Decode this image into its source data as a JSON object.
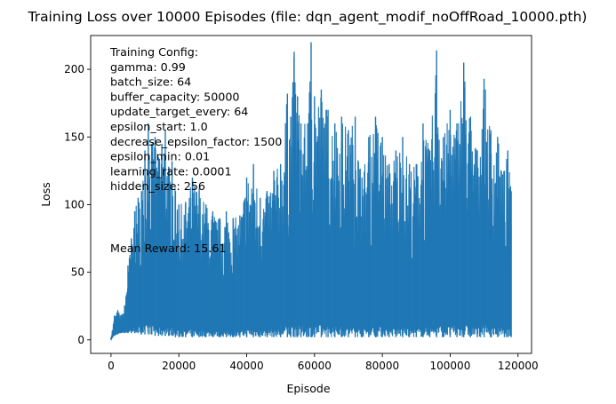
{
  "chart_data": {
    "type": "line",
    "title": "Training Loss over 10000 Episodes (file: dqn_agent_modif_noOffRoad_10000.pth)",
    "xlabel": "Episode",
    "ylabel": "Loss",
    "xlim": [
      -6000,
      124000
    ],
    "ylim": [
      -10,
      225
    ],
    "xticks": [
      0,
      20000,
      40000,
      60000,
      80000,
      100000,
      120000
    ],
    "xtick_labels": [
      "0",
      "20000",
      "40000",
      "60000",
      "80000",
      "100000",
      "120000"
    ],
    "yticks": [
      0,
      50,
      100,
      150,
      200
    ],
    "ytick_labels": [
      "0",
      "50",
      "100",
      "150",
      "200"
    ],
    "grid": false,
    "series_color": "#1f77b4",
    "annotations": {
      "config_lines": [
        "Training Config:",
        "gamma: 0.99",
        "batch_size: 64",
        "buffer_capacity: 50000",
        "update_target_every: 64",
        "epsilon_start: 1.0",
        "decrease_epsilon_factor: 1500",
        "epsilon_min: 0.01",
        "learning_rate: 0.0001",
        "hidden_size: 256"
      ],
      "mean_reward": "Mean Reward: 15.61"
    },
    "series": [
      {
        "description_free": true,
        "x": [
          0,
          1000,
          2000,
          3000,
          4000,
          5000,
          6000,
          7000,
          8000,
          9000,
          10000,
          11000,
          12000,
          13000,
          14000,
          15000,
          16000,
          17000,
          18000,
          19000,
          20000,
          22000,
          24000,
          26000,
          28000,
          30000,
          32000,
          34000,
          36000,
          38000,
          40000,
          42000,
          44000,
          46000,
          48000,
          50000,
          52000,
          53000,
          54000,
          55000,
          56000,
          58000,
          59000,
          60000,
          62000,
          64000,
          66000,
          68000,
          70000,
          72000,
          74000,
          76000,
          78000,
          80000,
          82000,
          84000,
          86000,
          88000,
          90000,
          92000,
          94000,
          96000,
          98000,
          100000,
          102000,
          104000,
          106000,
          108000,
          110000,
          112000,
          114000,
          116000,
          117000,
          118000
        ],
        "max": [
          2,
          18,
          22,
          18,
          25,
          55,
          75,
          95,
          105,
          110,
          140,
          160,
          145,
          150,
          135,
          145,
          155,
          128,
          132,
          110,
          100,
          102,
          120,
          112,
          100,
          95,
          90,
          95,
          90,
          92,
          120,
          130,
          105,
          110,
          125,
          130,
          182,
          165,
          213,
          180,
          160,
          160,
          220,
          180,
          185,
          170,
          160,
          165,
          155,
          165,
          120,
          150,
          165,
          150,
          130,
          140,
          150,
          130,
          130,
          160,
          140,
          214,
          150,
          170,
          160,
          205,
          165,
          140,
          193,
          155,
          150,
          125,
          140,
          110
        ],
        "min": [
          0,
          3,
          4,
          5,
          5,
          5,
          5,
          5,
          5,
          4,
          4,
          4,
          4,
          3,
          3,
          3,
          3,
          3,
          3,
          2,
          2,
          2,
          2,
          2,
          2,
          2,
          2,
          2,
          2,
          2,
          2,
          2,
          2,
          2,
          2,
          2,
          2,
          2,
          2,
          2,
          2,
          2,
          2,
          2,
          2,
          2,
          2,
          2,
          2,
          2,
          2,
          2,
          2,
          2,
          2,
          2,
          2,
          2,
          2,
          2,
          2,
          2,
          2,
          2,
          2,
          2,
          2,
          2,
          2,
          2,
          2,
          2,
          2,
          2
        ]
      }
    ]
  }
}
